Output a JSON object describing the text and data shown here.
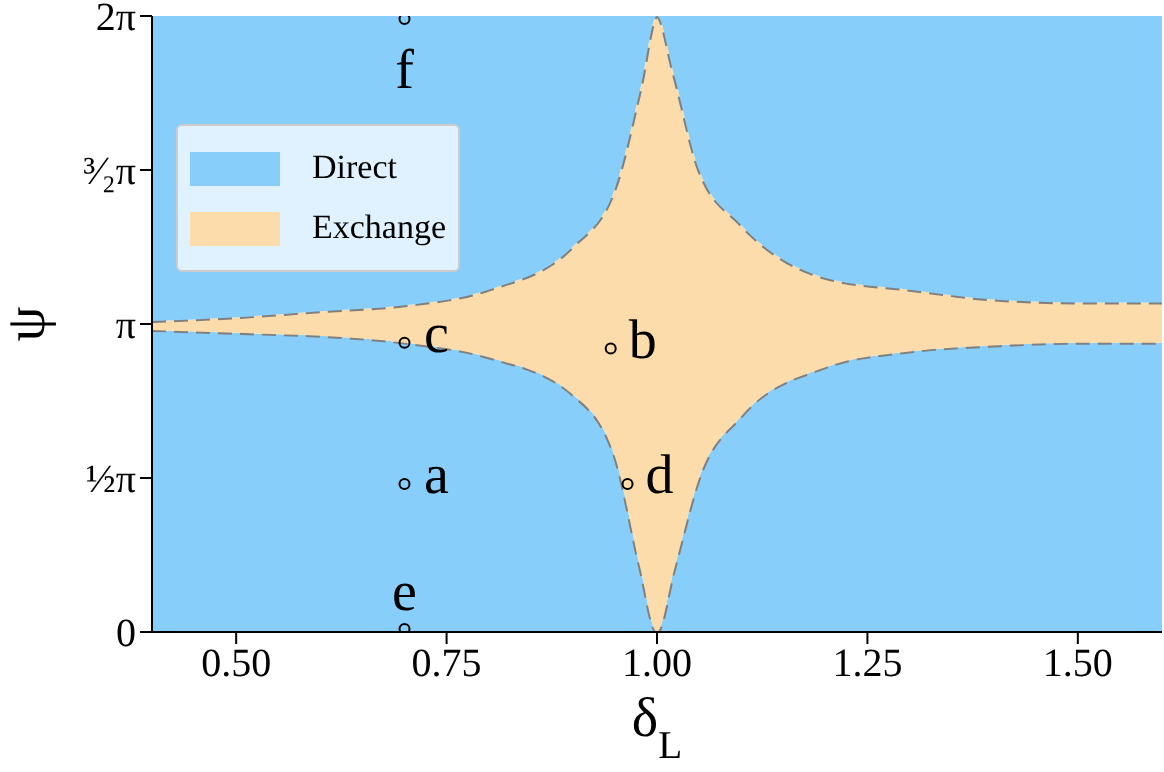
{
  "chart_data": {
    "type": "area",
    "xlabel": "δ$_{L}$",
    "ylabel": "ψ",
    "x": [
      0.4,
      0.5,
      0.6,
      0.7,
      0.8,
      0.9,
      0.95,
      0.98,
      1.0,
      1.02,
      1.05,
      1.1,
      1.2,
      1.3,
      1.4,
      1.5,
      1.6
    ],
    "stacked": true,
    "series": [
      {
        "name": "Direct",
        "color": "#87cefa",
        "line_style": "dashed",
        "values": [
          3.08,
          3.05,
          3.02,
          2.95,
          2.8,
          2.42,
          1.79,
          0.66,
          0,
          0.63,
          1.57,
          2.2,
          2.7,
          2.86,
          2.92,
          2.95,
          2.95
        ]
      },
      {
        "name": "Exchange",
        "color": "#fcdcaa",
        "line_style": "dashed",
        "values": [
          0.09,
          0.16,
          0.25,
          0.38,
          0.69,
          1.51,
          2.73,
          4.87,
          6.28,
          5.06,
          3.14,
          1.95,
          0.91,
          0.63,
          0.47,
          0.41,
          0.41
        ]
      },
      {
        "color": "#87cefa",
        "values": [
          3.11,
          3.07,
          3.01,
          2.95,
          2.79,
          2.35,
          1.76,
          0.75,
          0,
          0.59,
          1.57,
          2.13,
          2.67,
          2.79,
          2.89,
          2.92,
          2.92
        ]
      },
      {
        "type": "scatter",
        "color": "#000000",
        "marker": "circle",
        "x": [
          0.7,
          0.945,
          0.7,
          0.965,
          0.7,
          0.7
        ],
        "values": [
          1.51,
          2.89,
          2.95,
          1.51,
          0.03,
          6.25
        ]
      }
    ],
    "annotations": [
      {
        "text": "a",
        "x": 0.7,
        "y": 1.51
      },
      {
        "text": "b",
        "x": 0.945,
        "y": 2.89
      },
      {
        "text": "c",
        "x": 0.7,
        "y": 2.95
      },
      {
        "text": "d",
        "x": 0.965,
        "y": 1.51
      },
      {
        "text": "e",
        "x": 0.7,
        "y": 0.03
      },
      {
        "text": "f",
        "x": 0.7,
        "y": 6.25
      }
    ],
    "xlim": [
      0.4,
      1.6
    ],
    "xticks": [
      {
        "value": 0.5,
        "label": "0.50"
      },
      {
        "value": 0.75,
        "label": "0.75"
      },
      {
        "value": 1.0,
        "label": "1.00"
      },
      {
        "value": 1.25,
        "label": "1.25"
      },
      {
        "value": 1.5,
        "label": "1.50"
      }
    ],
    "ylim": [
      0,
      6.28
    ],
    "yticks": [
      0,
      {
        "value": 1.57,
        "label": "½π"
      },
      {
        "value": 3.14,
        "label": "π"
      },
      {
        "value": 4.71,
        "label": "³⁄₂π"
      },
      {
        "value": 6.28,
        "label": "2π"
      }
    ],
    "legend": "top left"
  }
}
